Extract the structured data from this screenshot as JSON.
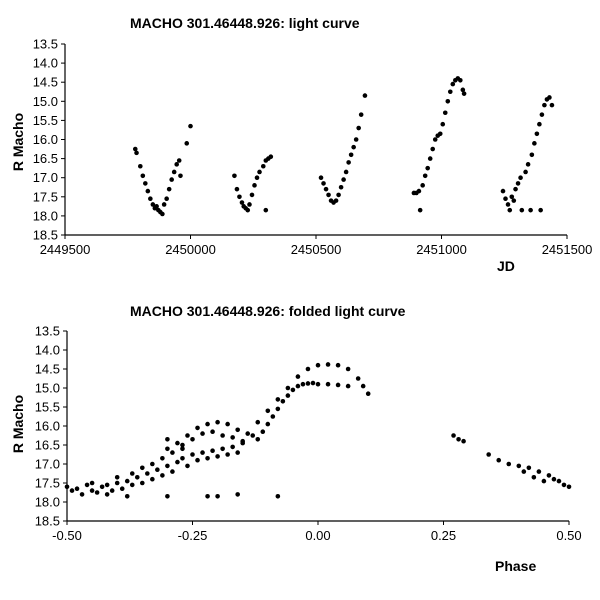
{
  "chart_data": [
    {
      "type": "scatter",
      "title": "MACHO 301.46448.926: light curve",
      "xlabel": "JD",
      "ylabel": "R Macho",
      "xlim": [
        2449500,
        2451500
      ],
      "ylim": [
        18.5,
        13.5
      ],
      "y_inverted": true,
      "x_ticks": [
        "2449500",
        "2450000",
        "2450500",
        "2451000",
        "2451500"
      ],
      "y_ticks": [
        "13.5",
        "14.0",
        "14.5",
        "15.0",
        "15.5",
        "16.0",
        "16.5",
        "17.0",
        "17.5",
        "18.0",
        "18.5"
      ],
      "grid": false,
      "legend": "none",
      "series": [
        {
          "marker_color": "#000000",
          "points": [
            [
              2449780,
              16.25
            ],
            [
              2449785,
              16.35
            ],
            [
              2449800,
              16.7
            ],
            [
              2449810,
              16.95
            ],
            [
              2449820,
              17.15
            ],
            [
              2449830,
              17.35
            ],
            [
              2449840,
              17.55
            ],
            [
              2449850,
              17.7
            ],
            [
              2449858,
              17.8
            ],
            [
              2449865,
              17.75
            ],
            [
              2449872,
              17.85
            ],
            [
              2449880,
              17.9
            ],
            [
              2449888,
              17.95
            ],
            [
              2449895,
              17.7
            ],
            [
              2449905,
              17.55
            ],
            [
              2449915,
              17.3
            ],
            [
              2449925,
              17.05
            ],
            [
              2449935,
              16.85
            ],
            [
              2449945,
              16.65
            ],
            [
              2449955,
              16.55
            ],
            [
              2449960,
              16.95
            ],
            [
              2449985,
              16.1
            ],
            [
              2450000,
              15.65
            ],
            [
              2450175,
              16.95
            ],
            [
              2450185,
              17.3
            ],
            [
              2450195,
              17.5
            ],
            [
              2450205,
              17.65
            ],
            [
              2450212,
              17.75
            ],
            [
              2450220,
              17.8
            ],
            [
              2450228,
              17.85
            ],
            [
              2450235,
              17.7
            ],
            [
              2450245,
              17.45
            ],
            [
              2450255,
              17.2
            ],
            [
              2450265,
              17.0
            ],
            [
              2450275,
              16.85
            ],
            [
              2450290,
              16.7
            ],
            [
              2450300,
              16.55
            ],
            [
              2450310,
              16.5
            ],
            [
              2450320,
              16.45
            ],
            [
              2450300,
              17.85
            ],
            [
              2450520,
              17.0
            ],
            [
              2450530,
              17.15
            ],
            [
              2450540,
              17.3
            ],
            [
              2450550,
              17.45
            ],
            [
              2450560,
              17.6
            ],
            [
              2450570,
              17.65
            ],
            [
              2450580,
              17.6
            ],
            [
              2450590,
              17.45
            ],
            [
              2450600,
              17.25
            ],
            [
              2450610,
              17.05
            ],
            [
              2450620,
              16.85
            ],
            [
              2450630,
              16.6
            ],
            [
              2450640,
              16.4
            ],
            [
              2450650,
              16.2
            ],
            [
              2450660,
              16.0
            ],
            [
              2450670,
              15.7
            ],
            [
              2450680,
              15.35
            ],
            [
              2450695,
              14.85
            ],
            [
              2450890,
              17.4
            ],
            [
              2450900,
              17.4
            ],
            [
              2450910,
              17.35
            ],
            [
              2450915,
              17.85
            ],
            [
              2450925,
              17.2
            ],
            [
              2450935,
              16.95
            ],
            [
              2450945,
              16.75
            ],
            [
              2450955,
              16.5
            ],
            [
              2450965,
              16.25
            ],
            [
              2450975,
              16.0
            ],
            [
              2450985,
              15.9
            ],
            [
              2450995,
              15.85
            ],
            [
              2451005,
              15.6
            ],
            [
              2451015,
              15.3
            ],
            [
              2451025,
              15.0
            ],
            [
              2451035,
              14.75
            ],
            [
              2451045,
              14.55
            ],
            [
              2451055,
              14.45
            ],
            [
              2451065,
              14.4
            ],
            [
              2451075,
              14.45
            ],
            [
              2451085,
              14.7
            ],
            [
              2451090,
              14.8
            ],
            [
              2451245,
              17.35
            ],
            [
              2451255,
              17.55
            ],
            [
              2451265,
              17.7
            ],
            [
              2451272,
              17.85
            ],
            [
              2451280,
              17.5
            ],
            [
              2451288,
              17.6
            ],
            [
              2451295,
              17.3
            ],
            [
              2451305,
              17.15
            ],
            [
              2451315,
              17.0
            ],
            [
              2451320,
              17.85
            ],
            [
              2451335,
              16.85
            ],
            [
              2451345,
              16.65
            ],
            [
              2451355,
              17.85
            ],
            [
              2451360,
              16.4
            ],
            [
              2451370,
              16.1
            ],
            [
              2451380,
              15.85
            ],
            [
              2451390,
              15.6
            ],
            [
              2451395,
              17.85
            ],
            [
              2451400,
              15.35
            ],
            [
              2451410,
              15.1
            ],
            [
              2451420,
              14.95
            ],
            [
              2451430,
              14.9
            ],
            [
              2451440,
              15.1
            ]
          ]
        }
      ]
    },
    {
      "type": "scatter",
      "title": "MACHO 301.46448.926: folded light curve",
      "xlabel": "Phase",
      "ylabel": "R Macho",
      "xlim": [
        -0.5,
        0.5
      ],
      "ylim": [
        18.5,
        13.5
      ],
      "y_inverted": true,
      "x_ticks": [
        "-0.50",
        "-0.25",
        "0.00",
        "0.25",
        "0.50"
      ],
      "y_ticks": [
        "13.5",
        "14.0",
        "14.5",
        "15.0",
        "15.5",
        "16.0",
        "16.5",
        "17.0",
        "17.5",
        "18.0",
        "18.5"
      ],
      "grid": false,
      "legend": "none",
      "series": [
        {
          "marker_color": "#000000",
          "points": [
            [
              -0.5,
              17.6
            ],
            [
              -0.49,
              17.7
            ],
            [
              -0.48,
              17.65
            ],
            [
              -0.47,
              17.8
            ],
            [
              -0.46,
              17.55
            ],
            [
              -0.45,
              17.7
            ],
            [
              -0.44,
              17.75
            ],
            [
              -0.43,
              17.6
            ],
            [
              -0.42,
              17.8
            ],
            [
              -0.41,
              17.7
            ],
            [
              -0.4,
              17.5
            ],
            [
              -0.39,
              17.65
            ],
            [
              -0.38,
              17.45
            ],
            [
              -0.37,
              17.55
            ],
            [
              -0.36,
              17.35
            ],
            [
              -0.35,
              17.5
            ],
            [
              -0.34,
              17.25
            ],
            [
              -0.33,
              17.4
            ],
            [
              -0.32,
              17.15
            ],
            [
              -0.31,
              17.3
            ],
            [
              -0.3,
              17.05
            ],
            [
              -0.29,
              17.2
            ],
            [
              -0.28,
              16.95
            ],
            [
              -0.27,
              16.85
            ],
            [
              -0.26,
              17.05
            ],
            [
              -0.25,
              16.75
            ],
            [
              -0.24,
              16.9
            ],
            [
              -0.23,
              16.7
            ],
            [
              -0.22,
              16.85
            ],
            [
              -0.21,
              16.65
            ],
            [
              -0.2,
              16.8
            ],
            [
              -0.19,
              16.6
            ],
            [
              -0.18,
              16.75
            ],
            [
              -0.17,
              16.55
            ],
            [
              -0.16,
              16.7
            ],
            [
              -0.15,
              16.45
            ],
            [
              -0.45,
              17.5
            ],
            [
              -0.42,
              17.55
            ],
            [
              -0.4,
              17.35
            ],
            [
              -0.37,
              17.25
            ],
            [
              -0.35,
              17.1
            ],
            [
              -0.33,
              17.0
            ],
            [
              -0.31,
              16.85
            ],
            [
              -0.29,
              16.7
            ],
            [
              -0.27,
              16.5
            ],
            [
              -0.25,
              16.35
            ],
            [
              -0.23,
              16.2
            ],
            [
              -0.21,
              16.15
            ],
            [
              -0.19,
              16.25
            ],
            [
              -0.17,
              16.3
            ],
            [
              -0.15,
              16.4
            ],
            [
              -0.3,
              16.6
            ],
            [
              -0.28,
              16.45
            ],
            [
              -0.26,
              16.25
            ],
            [
              -0.24,
              16.05
            ],
            [
              -0.22,
              15.95
            ],
            [
              -0.2,
              15.9
            ],
            [
              -0.18,
              15.95
            ],
            [
              -0.16,
              16.1
            ],
            [
              -0.14,
              16.2
            ],
            [
              -0.13,
              16.25
            ],
            [
              -0.12,
              16.35
            ],
            [
              -0.11,
              16.15
            ],
            [
              -0.1,
              15.95
            ],
            [
              -0.09,
              15.75
            ],
            [
              -0.08,
              15.55
            ],
            [
              -0.07,
              15.35
            ],
            [
              -0.06,
              15.2
            ],
            [
              -0.05,
              15.05
            ],
            [
              -0.04,
              14.95
            ],
            [
              -0.03,
              14.9
            ],
            [
              -0.02,
              14.88
            ],
            [
              -0.01,
              14.87
            ],
            [
              0.0,
              14.9
            ],
            [
              0.02,
              14.9
            ],
            [
              0.04,
              14.92
            ],
            [
              0.06,
              14.95
            ],
            [
              -0.12,
              15.9
            ],
            [
              -0.1,
              15.6
            ],
            [
              -0.08,
              15.3
            ],
            [
              -0.06,
              15.0
            ],
            [
              -0.04,
              14.7
            ],
            [
              -0.02,
              14.5
            ],
            [
              0.0,
              14.4
            ],
            [
              0.02,
              14.38
            ],
            [
              0.04,
              14.4
            ],
            [
              0.06,
              14.5
            ],
            [
              0.08,
              14.75
            ],
            [
              0.09,
              14.95
            ],
            [
              0.1,
              15.15
            ],
            [
              0.27,
              16.25
            ],
            [
              0.28,
              16.35
            ],
            [
              0.29,
              16.4
            ],
            [
              0.34,
              16.75
            ],
            [
              0.36,
              16.9
            ],
            [
              0.38,
              17.0
            ],
            [
              0.4,
              17.05
            ],
            [
              0.42,
              17.1
            ],
            [
              0.44,
              17.2
            ],
            [
              0.46,
              17.3
            ],
            [
              0.47,
              17.4
            ],
            [
              0.48,
              17.45
            ],
            [
              0.49,
              17.55
            ],
            [
              0.5,
              17.6
            ],
            [
              0.45,
              17.45
            ],
            [
              0.43,
              17.35
            ],
            [
              0.41,
              17.2
            ],
            [
              -0.38,
              17.85
            ],
            [
              -0.3,
              17.85
            ],
            [
              -0.22,
              17.85
            ],
            [
              -0.2,
              17.85
            ],
            [
              -0.16,
              17.8
            ],
            [
              -0.08,
              17.85
            ],
            [
              -0.3,
              16.35
            ],
            [
              -0.27,
              16.6
            ]
          ]
        }
      ]
    }
  ]
}
